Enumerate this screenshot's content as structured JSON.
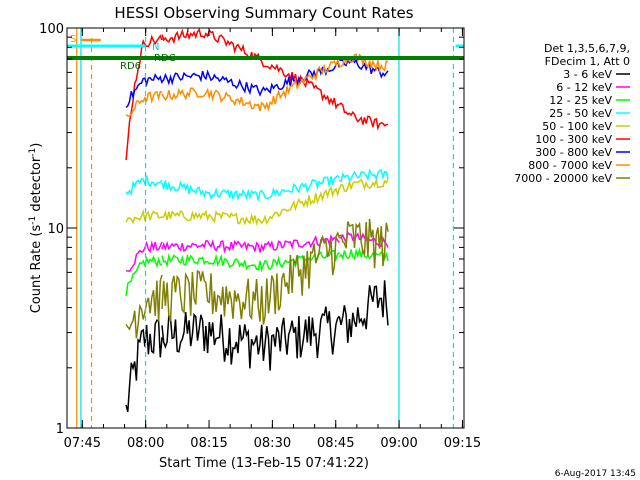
{
  "chart_data": {
    "type": "line",
    "title": "HESSI Observing Summary Count Rates",
    "xlabel": "Start Time (13-Feb-15 07:41:22)",
    "ylabel": "Count Rate (s",
    "ylabel_sup": "-1",
    "ylabel_tail": " detector",
    "ylabel_sup2": "-1",
    "ylabel_end": ")",
    "yscale": "log",
    "ylim": [
      1,
      100
    ],
    "xlim_minutes": [
      0,
      94
    ],
    "x_ticks": [
      "07:45",
      "08:00",
      "08:15",
      "08:30",
      "08:45",
      "09:00",
      "09:15"
    ],
    "y_ticks": [
      "1",
      "10",
      "100"
    ],
    "stamp": "6-Aug-2017 13:45",
    "legend_header": [
      "Det 1,3,5,6,7,9,",
      "FDecim 1, Att 0"
    ],
    "legend_items": [
      {
        "label": "3 - 6 keV",
        "color": "#000000"
      },
      {
        "label": "6 - 12 keV",
        "color": "#ff00ff"
      },
      {
        "label": "12 - 25 keV",
        "color": "#00ff00"
      },
      {
        "label": "25 - 50 keV",
        "color": "#00ffff"
      },
      {
        "label": "50 - 100 keV",
        "color": "#cccc00"
      },
      {
        "label": "100 - 300 keV",
        "color": "#ff0000"
      },
      {
        "label": "300 - 800 keV",
        "color": "#0000ff"
      },
      {
        "label": "800 - 7000 keV",
        "color": "#ff8c00"
      },
      {
        "label": "7000 - 20000 keV",
        "color": "#808000"
      }
    ],
    "annotations": [
      {
        "text": "S",
        "color": "#ff8c00"
      },
      {
        "text": "N",
        "color": "#00c8c8"
      },
      {
        "text": "RD6",
        "color": "#006400"
      },
      {
        "text": "RDC",
        "color": "#006400"
      }
    ],
    "segments": [
      {
        "start": 14.0,
        "end": 22.5
      },
      {
        "start": 22.5,
        "end": 64.5
      },
      {
        "start": 64.5,
        "end": 76.0
      }
    ],
    "series": [
      {
        "color": "#000000",
        "values": [
          1.2,
          2.8,
          3.1,
          2.6,
          3.4,
          4.5
        ]
      },
      {
        "color": "#ff00ff",
        "values": [
          6.0,
          8.0,
          8.2,
          8.0,
          9.0,
          8.5
        ]
      },
      {
        "color": "#00ff00",
        "values": [
          4.8,
          6.8,
          7.0,
          6.5,
          7.5,
          7.2
        ]
      },
      {
        "color": "#00ffff",
        "values": [
          15.0,
          17.5,
          15.0,
          14.5,
          18.0,
          18.5
        ]
      },
      {
        "color": "#cccc00",
        "values": [
          11.0,
          11.5,
          11.5,
          11.0,
          16.5,
          17.0
        ]
      },
      {
        "color": "#ff0000",
        "values": [
          21.0,
          85.0,
          95.0,
          68.0,
          36.0,
          33.0
        ]
      },
      {
        "color": "#0000ff",
        "values": [
          42.0,
          55.0,
          58.0,
          48.0,
          68.0,
          60.0
        ]
      },
      {
        "color": "#ff8c00",
        "values": [
          35.0,
          45.0,
          48.0,
          40.0,
          72.0,
          65.0
        ]
      },
      {
        "color": "#808000",
        "values": [
          3.0,
          4.5,
          4.8,
          4.3,
          9.0,
          8.5
        ]
      }
    ]
  }
}
